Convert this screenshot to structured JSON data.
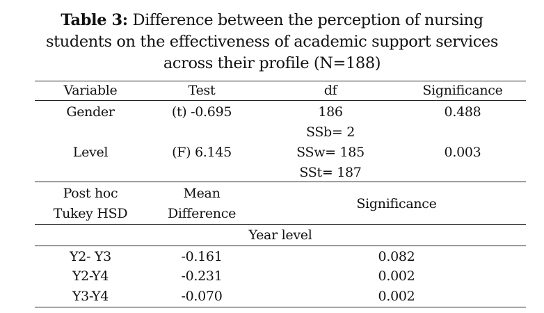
{
  "caption": {
    "label": "Table 3:",
    "line1": "Difference between the perception of nursing",
    "line2": "students on the effectiveness of academic support services",
    "line3": "across their profile (N=188)"
  },
  "table": {
    "headers": [
      "Variable",
      "Test",
      "df",
      "Significance"
    ],
    "rows": [
      {
        "variable": "Gender",
        "test": "(t) -0.695",
        "df": [
          "186"
        ],
        "significance": "0.488"
      },
      {
        "variable": "Level",
        "test": "(F) 6.145",
        "df": [
          "SSb= 2",
          "SSw= 185",
          "SSt= 187"
        ],
        "significance": "0.003"
      }
    ],
    "posthoc_headers": {
      "col1": [
        "Post hoc",
        "Tukey HSD"
      ],
      "col2": [
        "Mean",
        "Difference"
      ],
      "col3": "Significance"
    },
    "group_label": "Year level",
    "posthoc_rows": [
      {
        "pair": "Y2- Y3",
        "mean_difference": "-0.161",
        "significance": "0.082"
      },
      {
        "pair": "Y2-Y4",
        "mean_difference": "-0.231",
        "significance": "0.002"
      },
      {
        "pair": "Y3-Y4",
        "mean_difference": "-0.070",
        "significance": "0.002"
      }
    ]
  }
}
